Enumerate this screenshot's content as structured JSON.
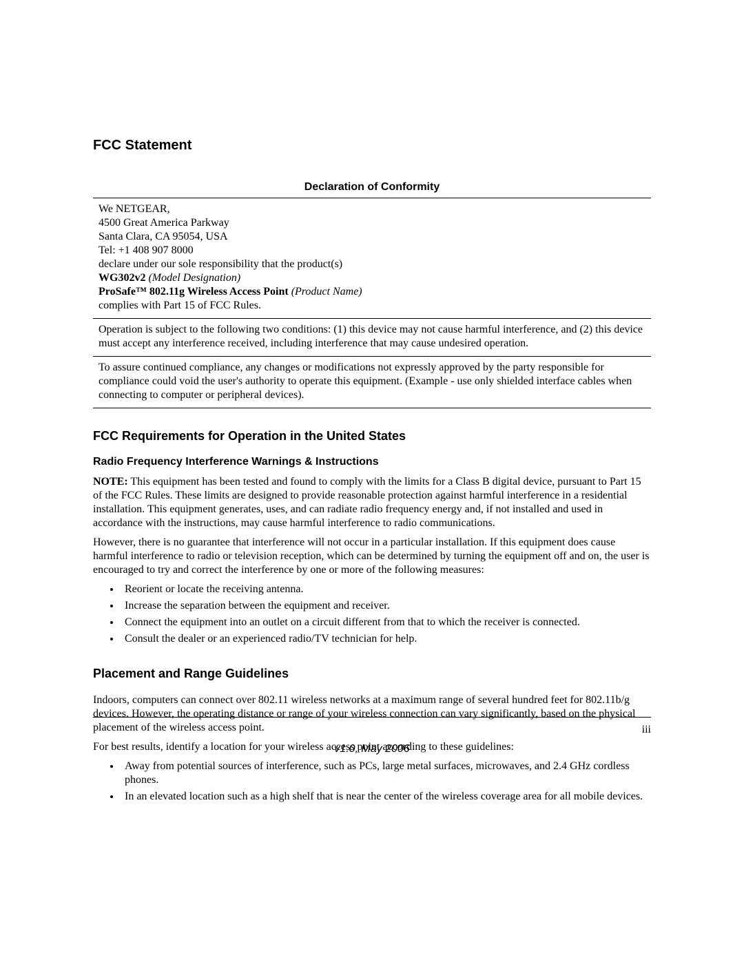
{
  "page": {
    "background": "#ffffff",
    "text_color": "#000000",
    "serif_font": "Times New Roman",
    "sans_font": "Arial",
    "body_fontsize_pt": 12,
    "heading_fontsize_pt": 15,
    "page_number": "iii",
    "version_line": "v1.0, May 2006"
  },
  "title": "FCC Statement",
  "declaration": {
    "heading": "Declaration of Conformity",
    "company_line": "We NETGEAR,",
    "address1": "4500 Great America Parkway",
    "address2": "Santa Clara, CA 95054, USA",
    "tel": "Tel: +1 408 907 8000",
    "declare_line": "declare under our sole responsibility that the product(s)",
    "model_bold": "WG302v2",
    "model_ital": " (Model Designation)",
    "product_bold": "ProSafe™ 802.11g Wireless Access Point",
    "product_ital": " (Product Name)",
    "complies": "complies with Part 15 of FCC Rules."
  },
  "para_conditions": "Operation is subject to the following two conditions: (1) this device may not cause harmful interference, and (2) this device must accept any interference received, including interference that may cause undesired operation.",
  "para_compliance": "To assure continued compliance, any changes or modifications not expressly approved by the party responsible for compliance could void the user's authority to operate this equipment. (Example - use only shielded interface cables when connecting to computer or peripheral devices).",
  "req_heading": "FCC Requirements for Operation in the United States",
  "rf_heading": "Radio Frequency Interference Warnings & Instructions",
  "note_label": "NOTE:",
  "note_body": " This equipment has been tested and found to comply with the limits for a Class B digital device, pursuant to Part 15 of the FCC Rules. These limits are designed to provide reasonable protection against harmful interference in a residential installation. This equipment generates, uses, and can radiate radio frequency energy and, if not installed and used in accordance with the instructions, may cause harmful interference to radio communications.",
  "however_para": "However, there is no guarantee that interference will not occur in a particular installation. If this equipment does cause harmful interference to radio or television reception, which can be determined by turning the equipment off and on, the user is encouraged to try and correct the interference by one or more of the following measures:",
  "measures": [
    "Reorient or locate the receiving antenna.",
    "Increase the separation between the equipment and receiver.",
    "Connect the equipment into an outlet on a circuit different from that to which the receiver is connected.",
    "Consult the dealer or an experienced radio/TV technician for help."
  ],
  "placement_heading": "Placement and Range Guidelines",
  "placement_p1": "Indoors, computers can connect over 802.11 wireless networks at a maximum range of several hundred feet for 802.11b/g devices. However, the operating distance or range of your wireless connection can vary significantly, based on the physical placement of the wireless access point.",
  "placement_p2": "For best results, identify a location for your wireless access point according to these guidelines:",
  "placement_bullets": [
    "Away from potential sources of interference, such as PCs, large metal surfaces, microwaves, and 2.4 GHz cordless phones.",
    "In an elevated location such as a high shelf that is near the center of the wireless coverage area for all mobile devices."
  ]
}
